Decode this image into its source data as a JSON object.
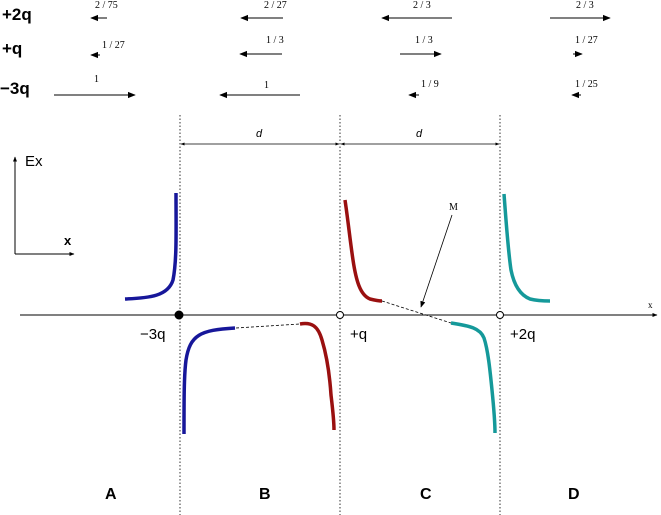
{
  "charges": [
    {
      "label": "+2q",
      "fractions": [
        "2 / 75",
        "2 / 27",
        "2 / 3",
        "2 / 3"
      ]
    },
    {
      "label": "+q",
      "fractions": [
        "1 / 27",
        "1 / 3",
        "1 / 3",
        "1 / 27"
      ]
    },
    {
      "label": "−3q",
      "fractions": [
        "1",
        "1",
        "1 / 9",
        "1 / 25"
      ]
    }
  ],
  "axis_labels": {
    "y": "Ex",
    "x_small": "x",
    "x_axis_end": "x"
  },
  "distance_labels": [
    "d",
    "d"
  ],
  "point_labels": {
    "minus3q": "−3q",
    "plusq": "+q",
    "plus2q": "+2q"
  },
  "annotation": "M",
  "regions": [
    "A",
    "B",
    "C",
    "D"
  ],
  "colors": {
    "minus3q_curve": "#17179a",
    "plusq_curve": "#9a1010",
    "plus2q_curve": "#15999a",
    "ink": "#000000"
  }
}
